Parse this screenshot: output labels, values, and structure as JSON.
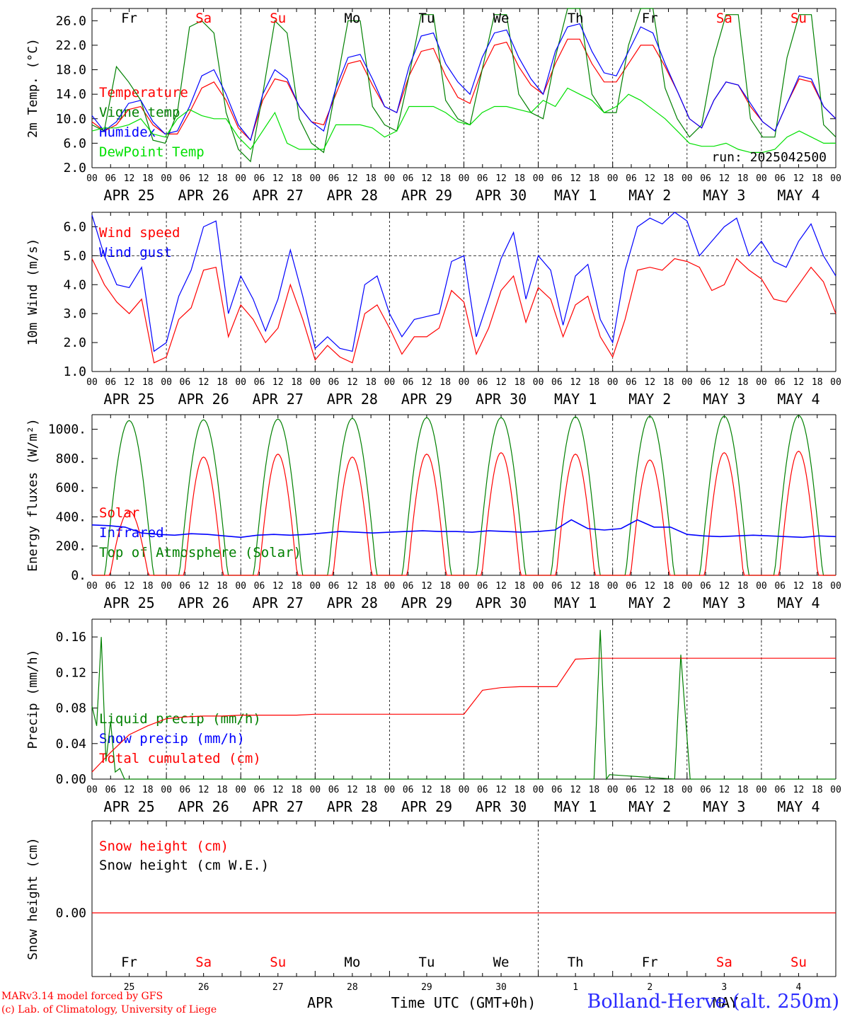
{
  "footer": {
    "model_credit": "MARv3.14 model forced by GFS",
    "lab_credit": "(c) Lab. of Climatology, University of Liege",
    "station": "Bolland-Herve (alt. 250m)",
    "time_axis_label": "Time UTC (GMT+0h)",
    "month_left": "APR",
    "month_right": "MAY"
  },
  "days": [
    {
      "date": "APR 25",
      "weekday": "Fr",
      "num": "25",
      "weekend": false
    },
    {
      "date": "APR 26",
      "weekday": "Sa",
      "num": "26",
      "weekend": true
    },
    {
      "date": "APR 27",
      "weekday": "Su",
      "num": "27",
      "weekend": true
    },
    {
      "date": "APR 28",
      "weekday": "Mo",
      "num": "28",
      "weekend": false
    },
    {
      "date": "APR 29",
      "weekday": "Tu",
      "num": "29",
      "weekend": false
    },
    {
      "date": "APR 30",
      "weekday": "We",
      "num": "30",
      "weekend": false
    },
    {
      "date": "MAY  1",
      "weekday": "Th",
      "num": "1",
      "weekend": false
    },
    {
      "date": "MAY  2",
      "weekday": "Fr",
      "num": "2",
      "weekend": false
    },
    {
      "date": "MAY  3",
      "weekday": "Sa",
      "num": "3",
      "weekend": true
    },
    {
      "date": "MAY  4",
      "weekday": "Su",
      "num": "4",
      "weekend": true
    }
  ],
  "hour_ticks": [
    "00",
    "06",
    "12",
    "18"
  ],
  "colors": {
    "red": "#ff0000",
    "green": "#008000",
    "blue": "#0000ff",
    "lightgreen": "#00e000",
    "weekday": "#000000",
    "weekend": "#ff0000"
  },
  "chart_data": [
    {
      "type": "line",
      "ylabel": "2m Temp. (°C)",
      "ylim": [
        2,
        28
      ],
      "yticks": [
        "2.0",
        "6.0",
        "10.0",
        "14.0",
        "18.0",
        "22.0",
        "26.0"
      ],
      "run_label": "run: 2025042500",
      "legend": [
        "Temperature",
        "Vigne temp",
        "Humidex",
        "DewPoint Temp"
      ],
      "series": [
        {
          "name": "Temperature",
          "color": "red",
          "values": [
            9.5,
            8,
            9,
            11.5,
            12,
            9,
            7.5,
            7.5,
            11,
            15,
            16,
            13,
            8.5,
            6.5,
            13,
            16.5,
            16,
            12,
            9.5,
            9,
            14,
            19,
            19.5,
            15.5,
            12,
            11,
            17,
            21,
            21.5,
            17,
            13.5,
            12.5,
            18,
            22,
            22.5,
            18.5,
            15.5,
            14,
            19,
            23,
            23,
            19,
            16,
            16,
            19,
            22,
            22,
            18.5,
            14.5,
            10,
            8.5,
            13,
            16,
            15.5,
            12,
            9.5,
            8,
            12.5,
            16.5,
            16,
            12,
            10
          ]
        },
        {
          "name": "Vigne temp",
          "color": "green",
          "values": [
            9,
            8,
            18.5,
            16,
            13,
            6.5,
            6,
            11,
            25,
            26,
            24,
            11,
            5,
            3,
            14,
            26,
            24,
            10,
            6,
            4.5,
            15,
            26,
            26,
            12,
            9,
            8,
            17,
            27,
            27,
            13,
            10,
            9,
            18,
            27,
            27,
            14,
            11,
            10,
            20,
            28,
            28,
            14,
            11,
            11,
            22,
            28,
            28,
            15,
            10,
            7,
            9,
            20,
            27,
            27,
            10,
            7,
            7,
            20,
            27,
            27,
            9,
            7
          ]
        },
        {
          "name": "Humidex",
          "color": "blue",
          "values": [
            10.5,
            8,
            9.5,
            12.5,
            13,
            9.5,
            7.5,
            8,
            12,
            17,
            18,
            14,
            9,
            6.5,
            14,
            18,
            16.5,
            12,
            9.5,
            8,
            15,
            20,
            20.5,
            16.5,
            12,
            11,
            18.5,
            23.5,
            24,
            19,
            16,
            14,
            20,
            24,
            24.5,
            20,
            16.5,
            14,
            21,
            25,
            25.5,
            21,
            17.5,
            17,
            21,
            25,
            24,
            19,
            14.5,
            10,
            8.5,
            13,
            16,
            15.5,
            12.5,
            9.5,
            8,
            12.5,
            17,
            16.5,
            12,
            10
          ]
        },
        {
          "name": "DewPoint Temp",
          "color": "lightgreen",
          "values": [
            8,
            8.5,
            8.5,
            9,
            10,
            7.5,
            7,
            10,
            11.5,
            10.5,
            10,
            10,
            7,
            5,
            8,
            11,
            6,
            5,
            5,
            5,
            9,
            9,
            9,
            8.5,
            7,
            8,
            12,
            12,
            12,
            11,
            9.5,
            9,
            11,
            12,
            12,
            11.5,
            11,
            13,
            12,
            15,
            14,
            13,
            11,
            12,
            14,
            13,
            11.5,
            10,
            8,
            6,
            5.5,
            5.5,
            6,
            5,
            4.5,
            4.5,
            5,
            7,
            8,
            7,
            6,
            6
          ]
        }
      ]
    },
    {
      "type": "line",
      "ylabel": "10m Wind (m/s)",
      "ylim": [
        1,
        6.5
      ],
      "yticks": [
        "1.0",
        "2.0",
        "3.0",
        "4.0",
        "5.0",
        "6.0"
      ],
      "reference_line": 5,
      "legend": [
        "Wind speed",
        "Wind gust"
      ],
      "series": [
        {
          "name": "Wind speed",
          "color": "red",
          "values": [
            4.9,
            4,
            3.4,
            3,
            3.5,
            1.3,
            1.5,
            2.8,
            3.2,
            4.5,
            4.6,
            2.2,
            3.3,
            2.8,
            2,
            2.5,
            4,
            2.8,
            1.4,
            1.9,
            1.5,
            1.3,
            3,
            3.3,
            2.5,
            1.6,
            2.2,
            2.2,
            2.5,
            3.8,
            3.4,
            1.6,
            2.5,
            3.8,
            4.3,
            2.7,
            3.9,
            3.5,
            2.2,
            3.3,
            3.6,
            2.2,
            1.5,
            2.8,
            4.5,
            4.6,
            4.5,
            4.9,
            4.8,
            4.6,
            3.8,
            4,
            4.9,
            4.5,
            4.2,
            3.5,
            3.4,
            4,
            4.6,
            4.1,
            3
          ]
        },
        {
          "name": "Wind gust",
          "color": "blue",
          "values": [
            6.4,
            5,
            4,
            3.9,
            4.6,
            1.7,
            2,
            3.6,
            4.5,
            6,
            6.2,
            3,
            4.3,
            3.5,
            2.4,
            3.5,
            5.2,
            3.6,
            1.8,
            2.2,
            1.8,
            1.7,
            4,
            4.3,
            3,
            2.2,
            2.8,
            2.9,
            3,
            4.8,
            5,
            2.2,
            3.5,
            4.9,
            5.8,
            3.5,
            5,
            4.5,
            2.6,
            4.3,
            4.7,
            2.8,
            2,
            4.5,
            6,
            6.3,
            6.1,
            6.5,
            6.2,
            5,
            5.5,
            6,
            6.3,
            5,
            5.5,
            4.8,
            4.6,
            5.5,
            6.1,
            5,
            4.3
          ]
        }
      ]
    },
    {
      "type": "line",
      "ylabel": "Energy fluxes (W/m²)",
      "ylim": [
        0,
        1100
      ],
      "yticks": [
        "0.",
        "200.",
        "400.",
        "600.",
        "800.",
        "1000."
      ],
      "legend": [
        "Solar",
        "Infrared",
        "Top of Atmosphere (Solar)"
      ],
      "series": [
        {
          "name": "Solar",
          "color": "red",
          "daily_peak": [
            440,
            810,
            830,
            810,
            830,
            840,
            830,
            790,
            840,
            850
          ]
        },
        {
          "name": "Infrared",
          "color": "blue",
          "values": [
            345,
            340,
            330,
            290,
            280,
            275,
            285,
            280,
            270,
            260,
            275,
            280,
            275,
            280,
            290,
            300,
            295,
            290,
            295,
            300,
            305,
            300,
            300,
            295,
            305,
            300,
            295,
            300,
            310,
            380,
            320,
            310,
            320,
            380,
            330,
            330,
            280,
            270,
            265,
            270,
            275,
            270,
            265,
            260,
            270,
            265
          ]
        },
        {
          "name": "Top of Atmosphere (Solar)",
          "color": "green",
          "daily_peak": [
            1060,
            1065,
            1070,
            1075,
            1080,
            1080,
            1085,
            1090,
            1090,
            1095
          ]
        }
      ]
    },
    {
      "type": "line",
      "ylabel": "Precip (mm/h)",
      "ylim": [
        0,
        0.18
      ],
      "yticks": [
        "0.00",
        "0.04",
        "0.08",
        "0.12",
        "0.16"
      ],
      "legend": [
        "Liquid precip (mm/h)",
        "Snow precip (mm/h)",
        "Total cumulated (cm)"
      ],
      "series": [
        {
          "name": "Liquid precip (mm/h)",
          "color": "green",
          "spikes": [
            [
              0,
              0.082
            ],
            [
              1,
              0.06
            ],
            [
              2,
              0.16
            ],
            [
              3,
              0.02
            ],
            [
              4,
              0.065
            ],
            [
              5,
              0.008
            ],
            [
              6,
              0.012
            ],
            [
              7,
              0
            ]
          ],
          "late_spikes": [
            [
              162,
              0
            ],
            [
              164,
              0.168
            ],
            [
              166,
              0
            ],
            [
              167,
              0.005
            ],
            [
              188,
              0
            ],
            [
              190,
              0.14
            ],
            [
              193,
              0
            ]
          ]
        },
        {
          "name": "Snow precip (mm/h)",
          "color": "blue",
          "values": []
        },
        {
          "name": "Total cumulated (cm)",
          "color": "red",
          "values": [
            0.008,
            0.03,
            0.05,
            0.06,
            0.068,
            0.07,
            0.071,
            0.071,
            0.072,
            0.072,
            0.072,
            0.072,
            0.073,
            0.073,
            0.073,
            0.073,
            0.073,
            0.073,
            0.073,
            0.073,
            0.073,
            0.1,
            0.103,
            0.104,
            0.104,
            0.104,
            0.135,
            0.136,
            0.136,
            0.136,
            0.136,
            0.136,
            0.136,
            0.136,
            0.136,
            0.136,
            0.136,
            0.136,
            0.136,
            0.136,
            0.136
          ]
        }
      ]
    },
    {
      "type": "line",
      "ylabel": "Snow height (cm)",
      "yticks": [
        "0.00"
      ],
      "legend": [
        "Snow height (cm)",
        "Snow height (cm W.E.)"
      ],
      "series": [
        {
          "name": "Snow height (cm)",
          "color": "red",
          "values": [
            0,
            0
          ]
        }
      ]
    }
  ]
}
